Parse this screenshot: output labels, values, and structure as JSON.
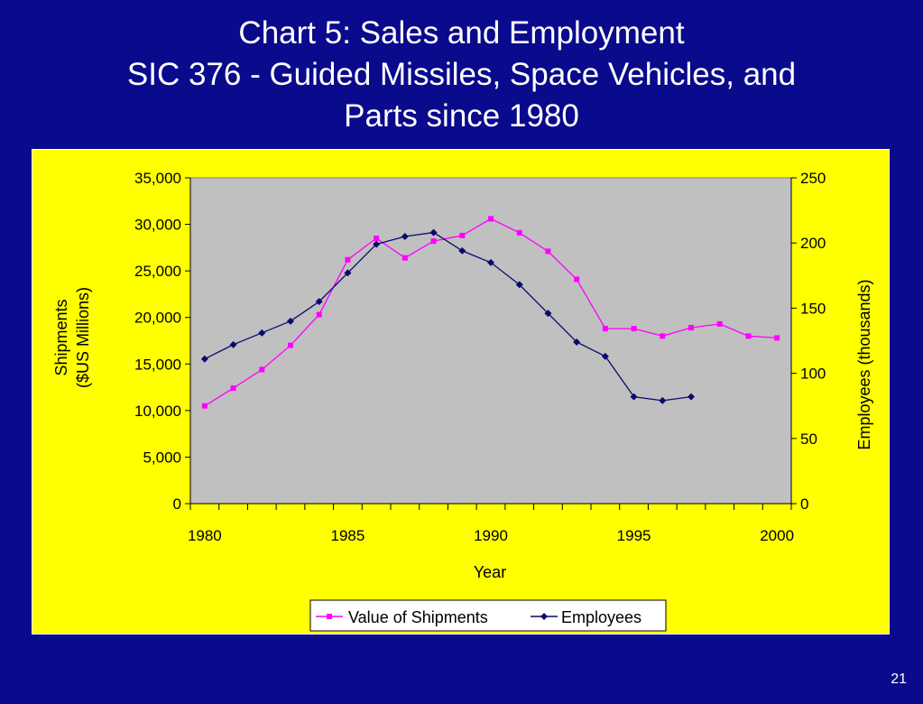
{
  "slide": {
    "title_line1": "Chart 5:  Sales and Employment",
    "title_line2": "SIC 376 - Guided Missiles, Space Vehicles, and",
    "title_line3": "Parts since 1980",
    "page_number": "21"
  },
  "chart_data": {
    "type": "line",
    "xlabel": "Year",
    "ylabel_left_line1": "Shipments",
    "ylabel_left_line2": "($US Millions)",
    "ylabel_right": "Employees (thousands)",
    "x_range": [
      1980,
      2000
    ],
    "x_ticks": [
      "1980",
      "1985",
      "1990",
      "1995",
      "2000"
    ],
    "y_left_range": [
      0,
      35000
    ],
    "y_left_ticks": [
      "0",
      "5,000",
      "10,000",
      "15,000",
      "20,000",
      "25,000",
      "30,000",
      "35,000"
    ],
    "y_right_range": [
      0,
      250
    ],
    "y_right_ticks": [
      "0",
      "50",
      "100",
      "150",
      "200",
      "250"
    ],
    "legend_position": "bottom",
    "series": [
      {
        "name": "Value of Shipments",
        "axis": "left",
        "color": "#ff00ff",
        "marker": "square",
        "x": [
          1980,
          1981,
          1982,
          1983,
          1984,
          1985,
          1986,
          1987,
          1988,
          1989,
          1990,
          1991,
          1992,
          1993,
          1994,
          1995,
          1996,
          1997,
          1998,
          1999,
          2000
        ],
        "values": [
          10500,
          12400,
          14400,
          17000,
          20300,
          26200,
          28500,
          26400,
          28200,
          28800,
          30600,
          29100,
          27100,
          24100,
          18800,
          18800,
          18000,
          18900,
          19300,
          18000,
          17800
        ]
      },
      {
        "name": "Employees",
        "axis": "right",
        "color": "#0a0a6e",
        "marker": "diamond",
        "x": [
          1980,
          1981,
          1982,
          1983,
          1984,
          1985,
          1986,
          1987,
          1988,
          1989,
          1990,
          1991,
          1992,
          1993,
          1994,
          1995,
          1996,
          1997
        ],
        "values": [
          111,
          122,
          131,
          140,
          155,
          177,
          199,
          205,
          208,
          194,
          185,
          168,
          146,
          124,
          113,
          82,
          79,
          82
        ]
      }
    ]
  },
  "colors": {
    "background": "#0a0a8c",
    "panel": "#ffff00",
    "plot_area": "#c0c0c0"
  }
}
